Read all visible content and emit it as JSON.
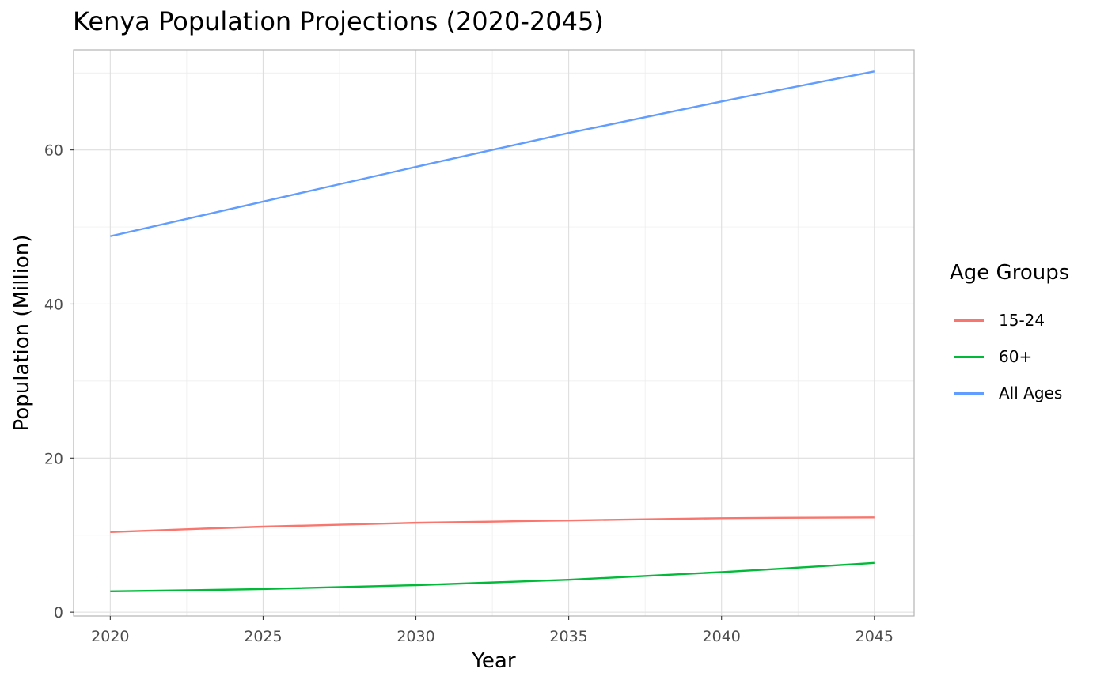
{
  "chart_data": {
    "type": "line",
    "title": "Kenya Population Projections (2020-2045)",
    "xlabel": "Year",
    "ylabel": "Population (Million)",
    "xlim": [
      2018.8,
      2046.3
    ],
    "ylim": [
      -0.5,
      73.0
    ],
    "x_ticks": [
      2020,
      2025,
      2030,
      2035,
      2040,
      2045
    ],
    "y_ticks": [
      0,
      20,
      40,
      60
    ],
    "grid": true,
    "legend_title": "Age Groups",
    "legend_position": "right",
    "x": [
      2020,
      2025,
      2030,
      2035,
      2040,
      2045
    ],
    "series": [
      {
        "name": "15-24",
        "color": "#F8766D",
        "values": [
          10.4,
          11.1,
          11.6,
          11.9,
          12.2,
          12.3
        ]
      },
      {
        "name": "60+",
        "color": "#00BA38",
        "values": [
          2.7,
          3.0,
          3.5,
          4.2,
          5.2,
          6.4
        ]
      },
      {
        "name": "All Ages",
        "color": "#619CFF",
        "values": [
          48.8,
          53.3,
          57.8,
          62.2,
          66.3,
          70.2
        ]
      }
    ]
  }
}
